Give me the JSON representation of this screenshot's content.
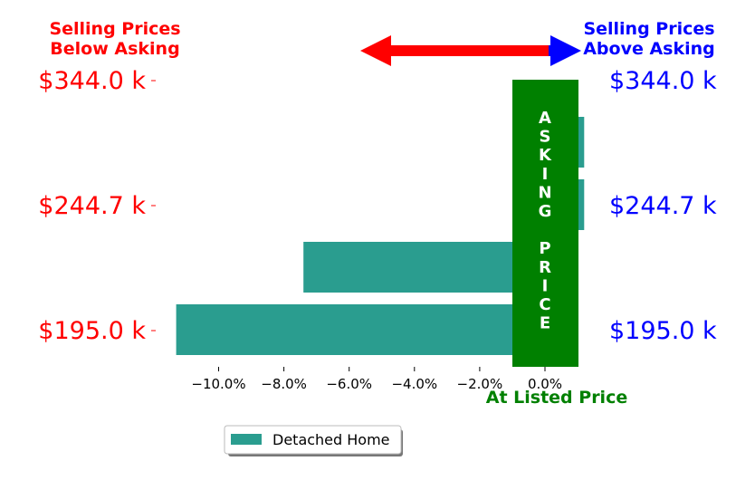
{
  "colors": {
    "below": "#ff0000",
    "above": "#0000ff",
    "asking": "#008000",
    "bar": "#2a9d8f"
  },
  "labels": {
    "below_line1": "Selling Prices",
    "below_line2": "Below Asking",
    "above_line1": "Selling Prices",
    "above_line2": "Above Asking",
    "asking_letters": [
      "A",
      "S",
      "K",
      "I",
      "N",
      "G",
      "",
      "P",
      "R",
      "I",
      "C",
      "E"
    ],
    "at_listed": "At Listed Price",
    "legend": "Detached Home"
  },
  "chart_data": {
    "type": "bar",
    "orientation": "horizontal",
    "series": [
      {
        "name": "Detached Home",
        "values": [
          -11.3,
          -7.4,
          1.2,
          1.2
        ]
      }
    ],
    "left_tick_labels": [
      "$195.0 k",
      "$244.7 k",
      "$344.0 k"
    ],
    "right_tick_labels": [
      "$195.0 k",
      "$244.7 k",
      "$344.0 k"
    ],
    "x_ticks": [
      -10,
      -8,
      -6,
      -4,
      -2,
      0
    ],
    "x_tick_labels": [
      "−10.0%",
      "−8.0%",
      "−6.0%",
      "−4.0%",
      "−2.0%",
      "0.0%"
    ],
    "xlim": [
      -11.3,
      1.2
    ],
    "xlabel": "At Listed Price",
    "asking_band": [
      -1.0,
      1.0
    ],
    "legend_position": "bottom-left",
    "grid": false
  }
}
